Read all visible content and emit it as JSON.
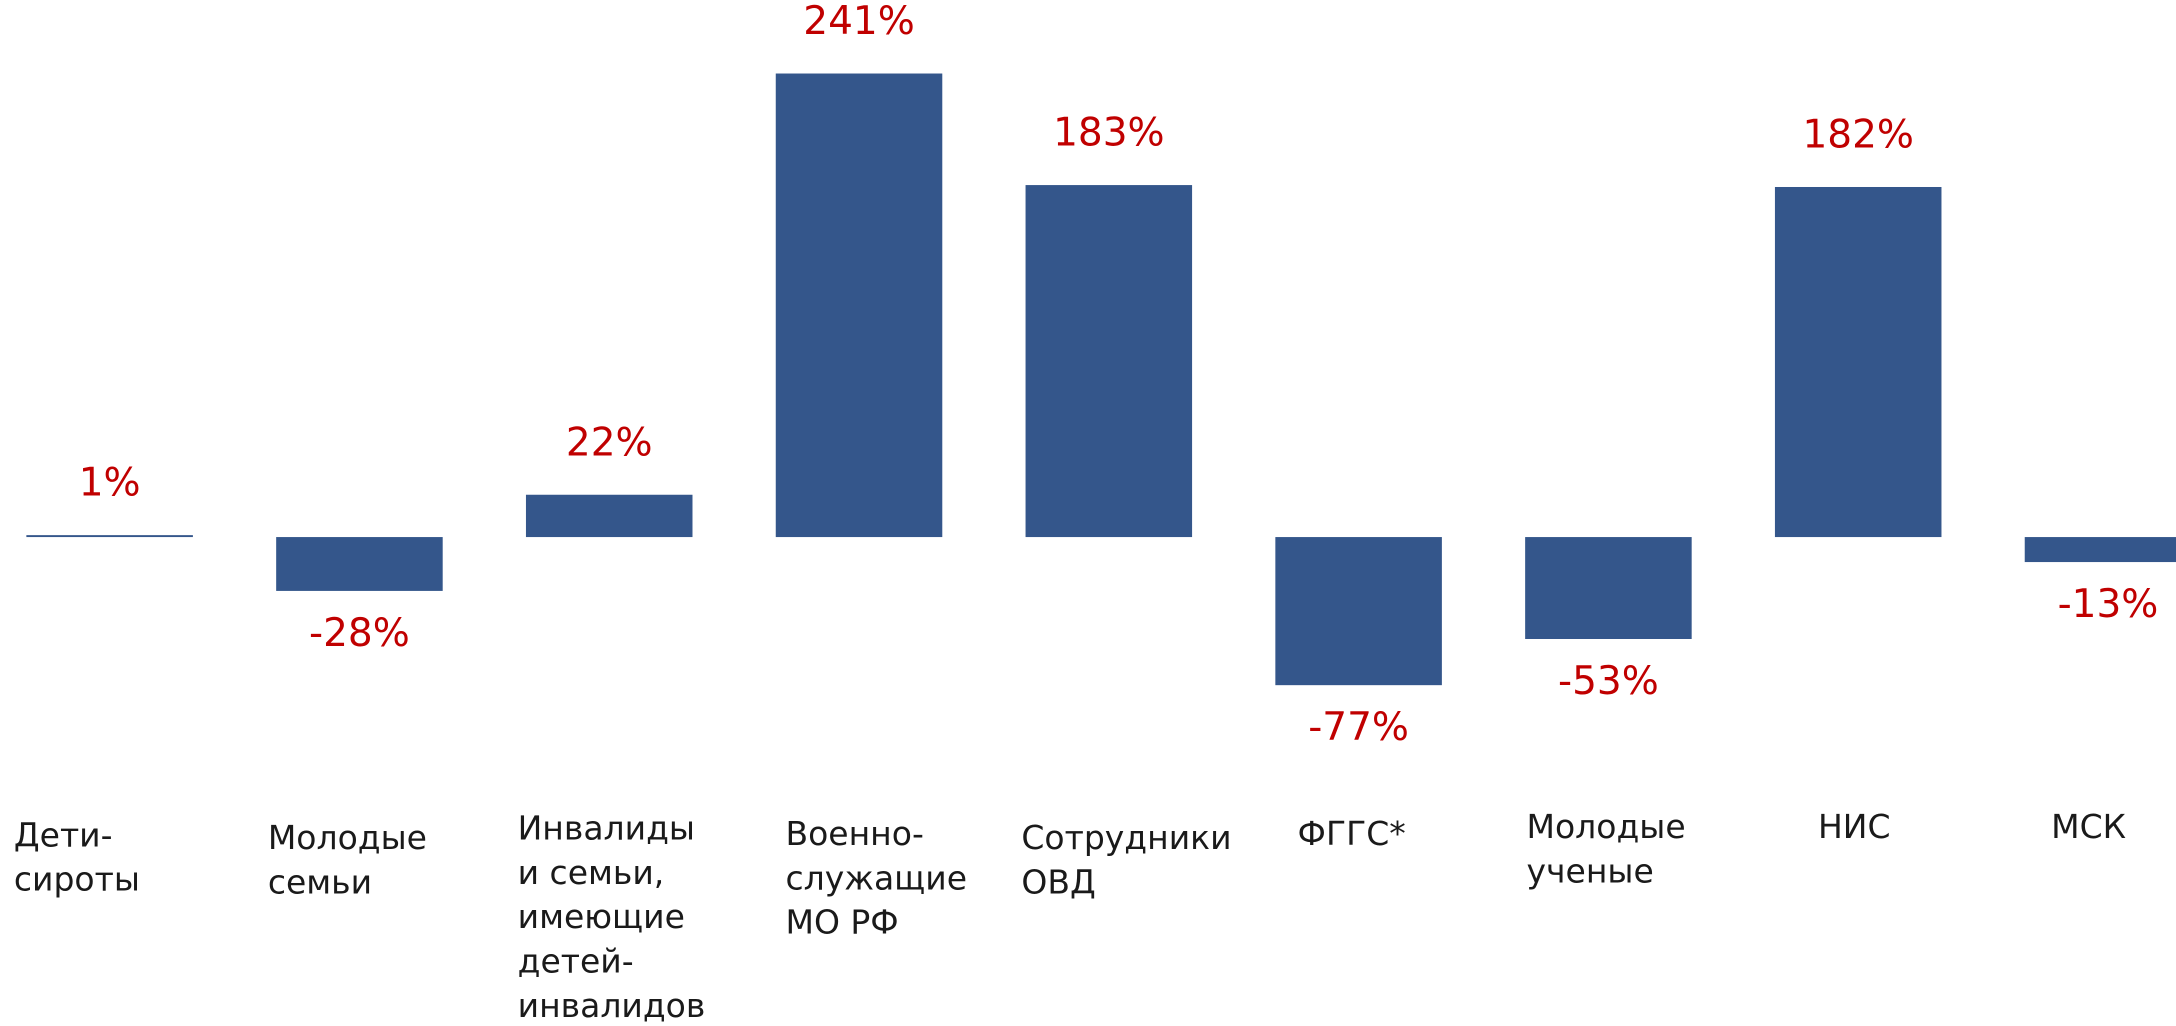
{
  "chart_data": {
    "type": "bar",
    "categories": [
      [
        "Дети-",
        "сироты"
      ],
      [
        "Молодые",
        "семьи"
      ],
      [
        "Инвалиды",
        "и семьи,",
        "имеющие",
        "детей-",
        "инвалидов"
      ],
      [
        "Военно-",
        "служащие",
        "МО РФ"
      ],
      [
        "Сотрудники",
        "ОВД"
      ],
      [
        "ФГГС*"
      ],
      [
        "Молодые",
        "ученые"
      ],
      [
        "НИС"
      ],
      [
        "МСК"
      ]
    ],
    "values": [
      1,
      -28,
      22,
      241,
      183,
      -77,
      -53,
      182,
      -13
    ],
    "value_labels": [
      "1%",
      "-28%",
      "22%",
      "241%",
      "183%",
      "-77%",
      "-53%",
      "182%",
      "-13%"
    ],
    "color": "#34568b"
  }
}
